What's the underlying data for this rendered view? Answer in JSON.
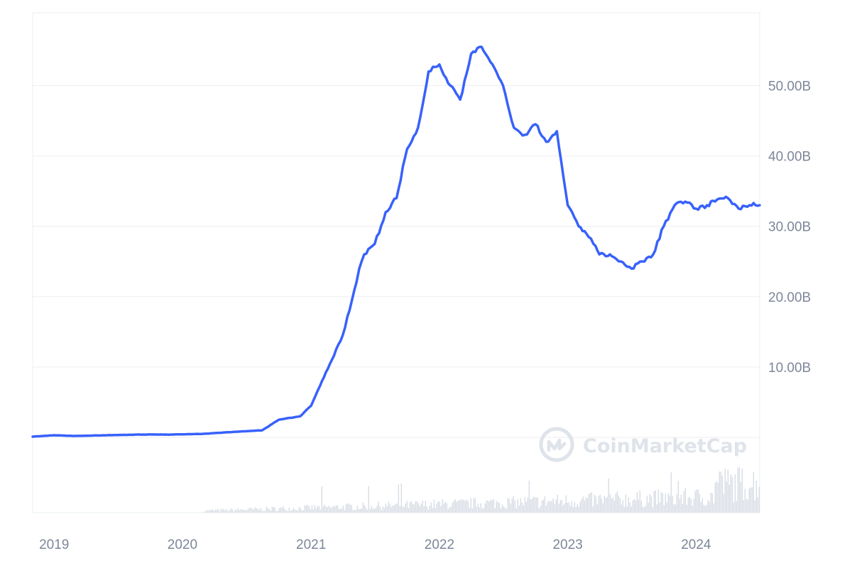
{
  "chart_data": {
    "type": "line",
    "title": "",
    "xlabel": "",
    "ylabel": "",
    "x_ticks": [
      "2019",
      "2020",
      "2021",
      "2022",
      "2023",
      "2024"
    ],
    "y_ticks": [
      "10.00B",
      "20.00B",
      "30.00B",
      "40.00B",
      "50.00B"
    ],
    "ylim": [
      0,
      60
    ],
    "y_unit": "B",
    "grid": true,
    "legend": "none",
    "line_color": "#3861fb",
    "volume_color": "#d7dce4",
    "series": [
      {
        "x": [
          "2018-11-01",
          "2019-01-01",
          "2019-03-01",
          "2019-06-01",
          "2019-09-01",
          "2019-12-01",
          "2020-03-01",
          "2020-06-01",
          "2020-08-15",
          "2020-10-01",
          "2020-12-01",
          "2021-01-01",
          "2021-02-01",
          "2021-03-01",
          "2021-04-01",
          "2021-05-10",
          "2021-05-18",
          "2021-06-01",
          "2021-07-01",
          "2021-08-01",
          "2021-09-01",
          "2021-10-01",
          "2021-11-01",
          "2021-12-01",
          "2022-01-01",
          "2022-02-01",
          "2022-03-01",
          "2022-04-01",
          "2022-05-01",
          "2022-06-01",
          "2022-07-01",
          "2022-08-01",
          "2022-09-01",
          "2022-10-01",
          "2022-11-01",
          "2022-12-01",
          "2023-01-01",
          "2023-02-01",
          "2023-03-01",
          "2023-03-15",
          "2023-04-01",
          "2023-05-01",
          "2023-06-01",
          "2023-07-01",
          "2023-08-01",
          "2023-09-01",
          "2023-10-01",
          "2023-11-01",
          "2023-12-01",
          "2024-01-01",
          "2024-02-01",
          "2024-03-01",
          "2024-04-01",
          "2024-05-01",
          "2024-06-01",
          "2024-06-30"
        ],
        "values": [
          0.1,
          0.3,
          0.2,
          0.3,
          0.4,
          0.4,
          0.5,
          0.8,
          1.0,
          2.5,
          3.0,
          4.5,
          8.0,
          11.0,
          14.5,
          22.0,
          24.0,
          26.0,
          27.5,
          32.0,
          34.0,
          41.0,
          44.0,
          52.0,
          53.0,
          50.0,
          48.0,
          54.5,
          55.5,
          53.0,
          50.0,
          44.0,
          43.0,
          44.5,
          42.0,
          43.5,
          33.0,
          30.0,
          28.5,
          27.5,
          26.0,
          26.0,
          25.0,
          24.0,
          25.0,
          26.0,
          30.0,
          33.0,
          33.5,
          32.5,
          33.0,
          33.8,
          34.0,
          32.5,
          33.0,
          33.0
        ]
      }
    ]
  },
  "watermark": {
    "text": "CoinMarketCap",
    "icon": "coinmarketcap-logo-icon"
  }
}
